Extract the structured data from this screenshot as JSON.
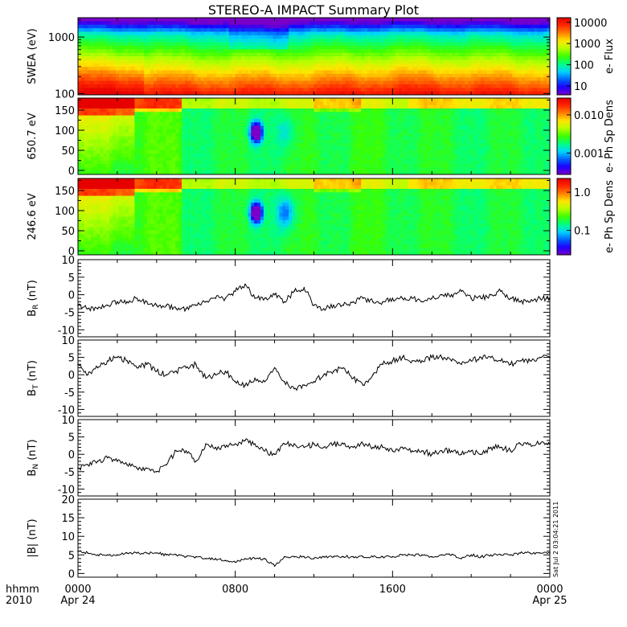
{
  "title": "STEREO-A IMPACT Summary Plot",
  "x_axis": {
    "row1_label": "hhmm",
    "row2_label": "2010",
    "ticks": [
      {
        "time": "0000",
        "date": "Apr 24"
      },
      {
        "time": "0800",
        "date": ""
      },
      {
        "time": "1600",
        "date": ""
      },
      {
        "time": "0000",
        "date": "Apr 25"
      }
    ]
  },
  "stamp": "Sat Jul  2 03:04:21 2011",
  "colors": {
    "line": "#000000",
    "colormap": [
      "#7a00c8",
      "#1d00ff",
      "#0064ff",
      "#00d6ff",
      "#00ff82",
      "#3cff00",
      "#b4ff00",
      "#ffe600",
      "#ff8200",
      "#ff2800",
      "#e60000"
    ]
  },
  "chart_data": [
    {
      "id": "swea",
      "type": "heatmap",
      "ylabel": "SWEA (eV)",
      "yscale": "log",
      "ylim": [
        95,
        2200
      ],
      "yticks": [
        "1000",
        "100"
      ],
      "colorbar": {
        "label": "e- Flux",
        "scale": "log",
        "ticks": [
          "10000",
          "1000",
          "100",
          "10"
        ]
      }
    },
    {
      "id": "pad650",
      "type": "heatmap",
      "ylabel": "650.7 eV",
      "ylim": [
        -10,
        180
      ],
      "yticks": [
        "150",
        "100",
        "50",
        "0"
      ],
      "colorbar": {
        "label": "e- Ph Sp Dens",
        "scale": "log",
        "ticks": [
          "0.010",
          "0.001"
        ]
      }
    },
    {
      "id": "pad246",
      "type": "heatmap",
      "ylabel": "246.6 eV",
      "ylim": [
        -10,
        180
      ],
      "yticks": [
        "150",
        "100",
        "50",
        "0"
      ],
      "colorbar": {
        "label": "e- Ph Sp Dens",
        "scale": "log",
        "ticks": [
          "1.0",
          "0.1"
        ]
      }
    },
    {
      "id": "br",
      "type": "line",
      "ylabel": "BR (nT)",
      "ylim": [
        -12,
        10
      ],
      "yticks": [
        "10",
        "5",
        "0",
        "-5",
        "-10"
      ],
      "x_hours": [
        0,
        0.5,
        1,
        1.5,
        2,
        2.5,
        3,
        3.5,
        4,
        4.5,
        5,
        5.5,
        6,
        6.5,
        7,
        7.5,
        8,
        8.5,
        9,
        9.5,
        10,
        10.5,
        11,
        11.5,
        12,
        12.5,
        13,
        13.5,
        14,
        14.5,
        15,
        15.5,
        16,
        16.5,
        17,
        17.5,
        18,
        18.5,
        19,
        19.5,
        20,
        20.5,
        21,
        21.5,
        22,
        22.5,
        23,
        23.5,
        24
      ],
      "values": [
        -3,
        -4,
        -4,
        -3,
        -2,
        -2,
        -1,
        -2,
        -3,
        -3,
        -4,
        -4,
        -3,
        -2,
        -1,
        -1,
        1,
        3,
        -1,
        -1,
        0,
        -2,
        1,
        2,
        -3,
        -4,
        -3,
        -3,
        -2,
        -1,
        -2,
        -2,
        -1,
        -1,
        -1,
        -2,
        -1,
        0,
        0,
        1,
        -1,
        -1,
        0,
        1,
        -1,
        -2,
        -2,
        -1,
        -1
      ]
    },
    {
      "id": "bt",
      "type": "line",
      "ylabel": "BT (nT)",
      "ylim": [
        -12,
        10
      ],
      "yticks": [
        "10",
        "5",
        "0",
        "-5",
        "-10"
      ],
      "x_hours": [
        0,
        0.5,
        1,
        1.5,
        2,
        2.5,
        3,
        3.5,
        4,
        4.5,
        5,
        5.5,
        6,
        6.5,
        7,
        7.5,
        8,
        8.5,
        9,
        9.5,
        10,
        10.5,
        11,
        11.5,
        12,
        12.5,
        13,
        13.5,
        14,
        14.5,
        15,
        15.5,
        16,
        16.5,
        17,
        17.5,
        18,
        18.5,
        19,
        19.5,
        20,
        20.5,
        21,
        21.5,
        22,
        22.5,
        23,
        23.5,
        24
      ],
      "values": [
        3,
        0,
        2,
        4,
        5,
        4,
        2,
        3,
        1,
        0,
        1,
        2,
        3,
        -1,
        0,
        1,
        -2,
        -3,
        -1,
        -2,
        2,
        -2,
        -4,
        -3,
        -2,
        0,
        1,
        2,
        -1,
        -3,
        0,
        3,
        4,
        5,
        4,
        4,
        5,
        5,
        4,
        3,
        4,
        5,
        5,
        4,
        3,
        4,
        4,
        5,
        5
      ]
    },
    {
      "id": "bn",
      "type": "line",
      "ylabel": "BN (nT)",
      "ylim": [
        -12,
        10
      ],
      "yticks": [
        "10",
        "5",
        "0",
        "-5",
        "-10"
      ],
      "x_hours": [
        0,
        0.5,
        1,
        1.5,
        2,
        2.5,
        3,
        3.5,
        4,
        4.5,
        5,
        5.5,
        6,
        6.5,
        7,
        7.5,
        8,
        8.5,
        9,
        9.5,
        10,
        10.5,
        11,
        11.5,
        12,
        12.5,
        13,
        13.5,
        14,
        14.5,
        15,
        15.5,
        16,
        16.5,
        17,
        17.5,
        18,
        18.5,
        19,
        19.5,
        20,
        20.5,
        21,
        21.5,
        22,
        22.5,
        23,
        23.5,
        24
      ],
      "values": [
        -4,
        -3,
        -2,
        -1,
        -2,
        -3,
        -4,
        -4,
        -5,
        -3,
        1,
        1,
        -2,
        3,
        2,
        2,
        3,
        4,
        3,
        1,
        0,
        3,
        3,
        2,
        3,
        2,
        3,
        3,
        2,
        3,
        2,
        2,
        1,
        2,
        1,
        1,
        0,
        1,
        1,
        0,
        1,
        0,
        2,
        2,
        1,
        3,
        3,
        3,
        3
      ]
    },
    {
      "id": "bmag",
      "type": "line",
      "ylabel": "|B| (nT)",
      "ylim": [
        -1,
        20
      ],
      "yticks": [
        "20",
        "15",
        "10",
        "5",
        "0"
      ],
      "x_hours": [
        0,
        0.5,
        1,
        1.5,
        2,
        2.5,
        3,
        3.5,
        4,
        4.5,
        5,
        5.5,
        6,
        6.5,
        7,
        7.5,
        8,
        8.5,
        9,
        9.5,
        10,
        10.5,
        11,
        11.5,
        12,
        12.5,
        13,
        13.5,
        14,
        14.5,
        15,
        15.5,
        16,
        16.5,
        17,
        17.5,
        18,
        18.5,
        19,
        19.5,
        20,
        20.5,
        21,
        21.5,
        22,
        22.5,
        23,
        23.5,
        24
      ],
      "values": [
        6,
        5.5,
        5,
        5,
        5,
        5.5,
        5.5,
        5.5,
        5.5,
        5,
        5,
        4.5,
        4.5,
        4,
        4,
        3.5,
        3,
        4,
        4,
        4,
        2,
        4.5,
        4.5,
        4.5,
        4,
        4.5,
        4.5,
        4.5,
        4.5,
        4.5,
        4.5,
        4.5,
        4.5,
        5,
        5,
        5,
        4.5,
        5,
        5,
        4,
        5,
        4.5,
        5,
        5,
        5,
        5.5,
        5.5,
        5.5,
        5.5
      ]
    }
  ]
}
